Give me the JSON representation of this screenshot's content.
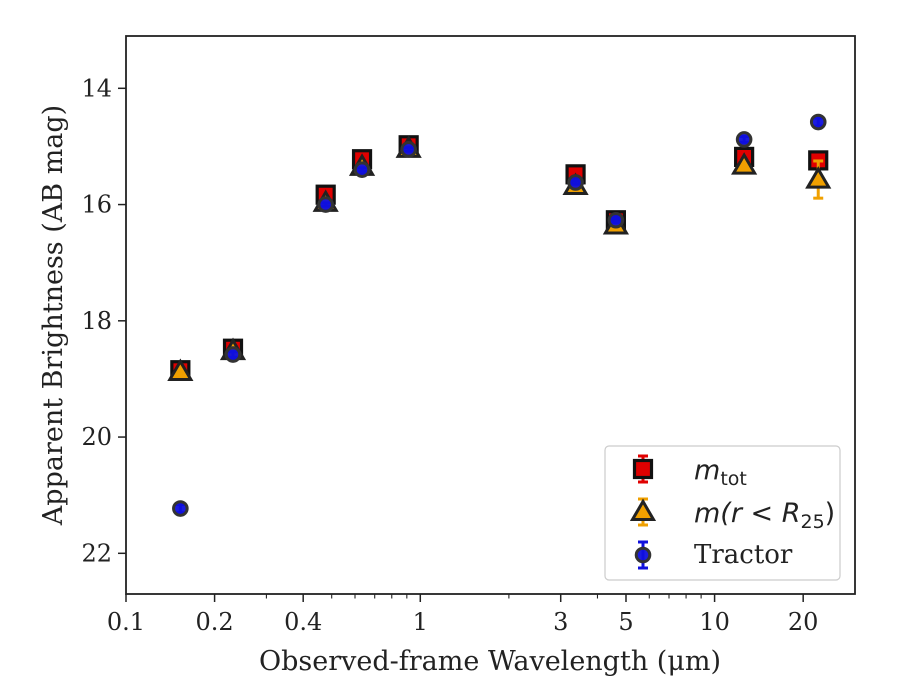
{
  "chart_data": {
    "type": "scatter",
    "xlabel": "Observed-frame Wavelength (μm)",
    "ylabel": "Apparent Brightness (AB mag)",
    "xscale": "log",
    "xlim": [
      0.1,
      30
    ],
    "ylim": [
      22.7,
      13.1
    ],
    "y_inverted": true,
    "xticks": [
      {
        "value": 0.1,
        "label": "0.1"
      },
      {
        "value": 0.2,
        "label": "0.2"
      },
      {
        "value": 0.4,
        "label": "0.4"
      },
      {
        "value": 1,
        "label": "1"
      },
      {
        "value": 3,
        "label": "3"
      },
      {
        "value": 5,
        "label": "5"
      },
      {
        "value": 10,
        "label": "10"
      },
      {
        "value": 20,
        "label": "20"
      }
    ],
    "yticks": [
      {
        "value": 14,
        "label": "14"
      },
      {
        "value": 16,
        "label": "16"
      },
      {
        "value": 18,
        "label": "18"
      },
      {
        "value": 20,
        "label": "20"
      },
      {
        "value": 22,
        "label": "22"
      }
    ],
    "grid": false,
    "legend": {
      "placement": "lower-right",
      "entries": [
        {
          "key": "mtot",
          "label_main": "m",
          "label_sub": "tot"
        },
        {
          "key": "mr25",
          "label_main": "m(r < R",
          "label_sub": "25",
          "label_end": ")"
        },
        {
          "key": "tractor",
          "label_main": "Tractor"
        }
      ]
    },
    "series": [
      {
        "key": "mtot",
        "marker": "square",
        "face_color": "#e00000",
        "edge_color": "#111111",
        "err_color": "#e00000",
        "x": [
          0.153,
          0.231,
          0.477,
          0.634,
          0.913,
          3.37,
          4.62,
          12.6,
          22.5
        ],
        "y": [
          18.85,
          18.48,
          15.83,
          15.22,
          14.98,
          15.48,
          16.27,
          15.18,
          15.24
        ],
        "yerr": [
          0.06,
          0.05,
          0.03,
          0.03,
          0.03,
          0.03,
          0.04,
          0.05,
          0.07
        ]
      },
      {
        "key": "mr25",
        "marker": "triangle",
        "face_color": "#f0a000",
        "edge_color": "#222222",
        "err_color": "#f0a000",
        "x": [
          0.153,
          0.231,
          0.477,
          0.634,
          0.913,
          3.37,
          4.62,
          12.6,
          22.5
        ],
        "y": [
          18.88,
          18.52,
          15.97,
          15.35,
          15.04,
          15.68,
          16.36,
          15.33,
          15.57
        ],
        "yerr": [
          0.05,
          0.05,
          0.03,
          0.03,
          0.03,
          0.03,
          0.04,
          0.07,
          0.32
        ]
      },
      {
        "key": "tractor",
        "marker": "circle",
        "face_color": "#1010dd",
        "edge_color": "#333333",
        "err_color": "#1010dd",
        "x": [
          0.153,
          0.231,
          0.477,
          0.634,
          0.913,
          3.37,
          4.62,
          12.6,
          22.5
        ],
        "y": [
          21.23,
          18.58,
          16.0,
          15.4,
          15.05,
          15.62,
          16.27,
          14.88,
          14.58
        ],
        "yerr": [
          0.07,
          0.05,
          0.03,
          0.03,
          0.03,
          0.03,
          0.04,
          0.05,
          0.07
        ]
      }
    ]
  }
}
